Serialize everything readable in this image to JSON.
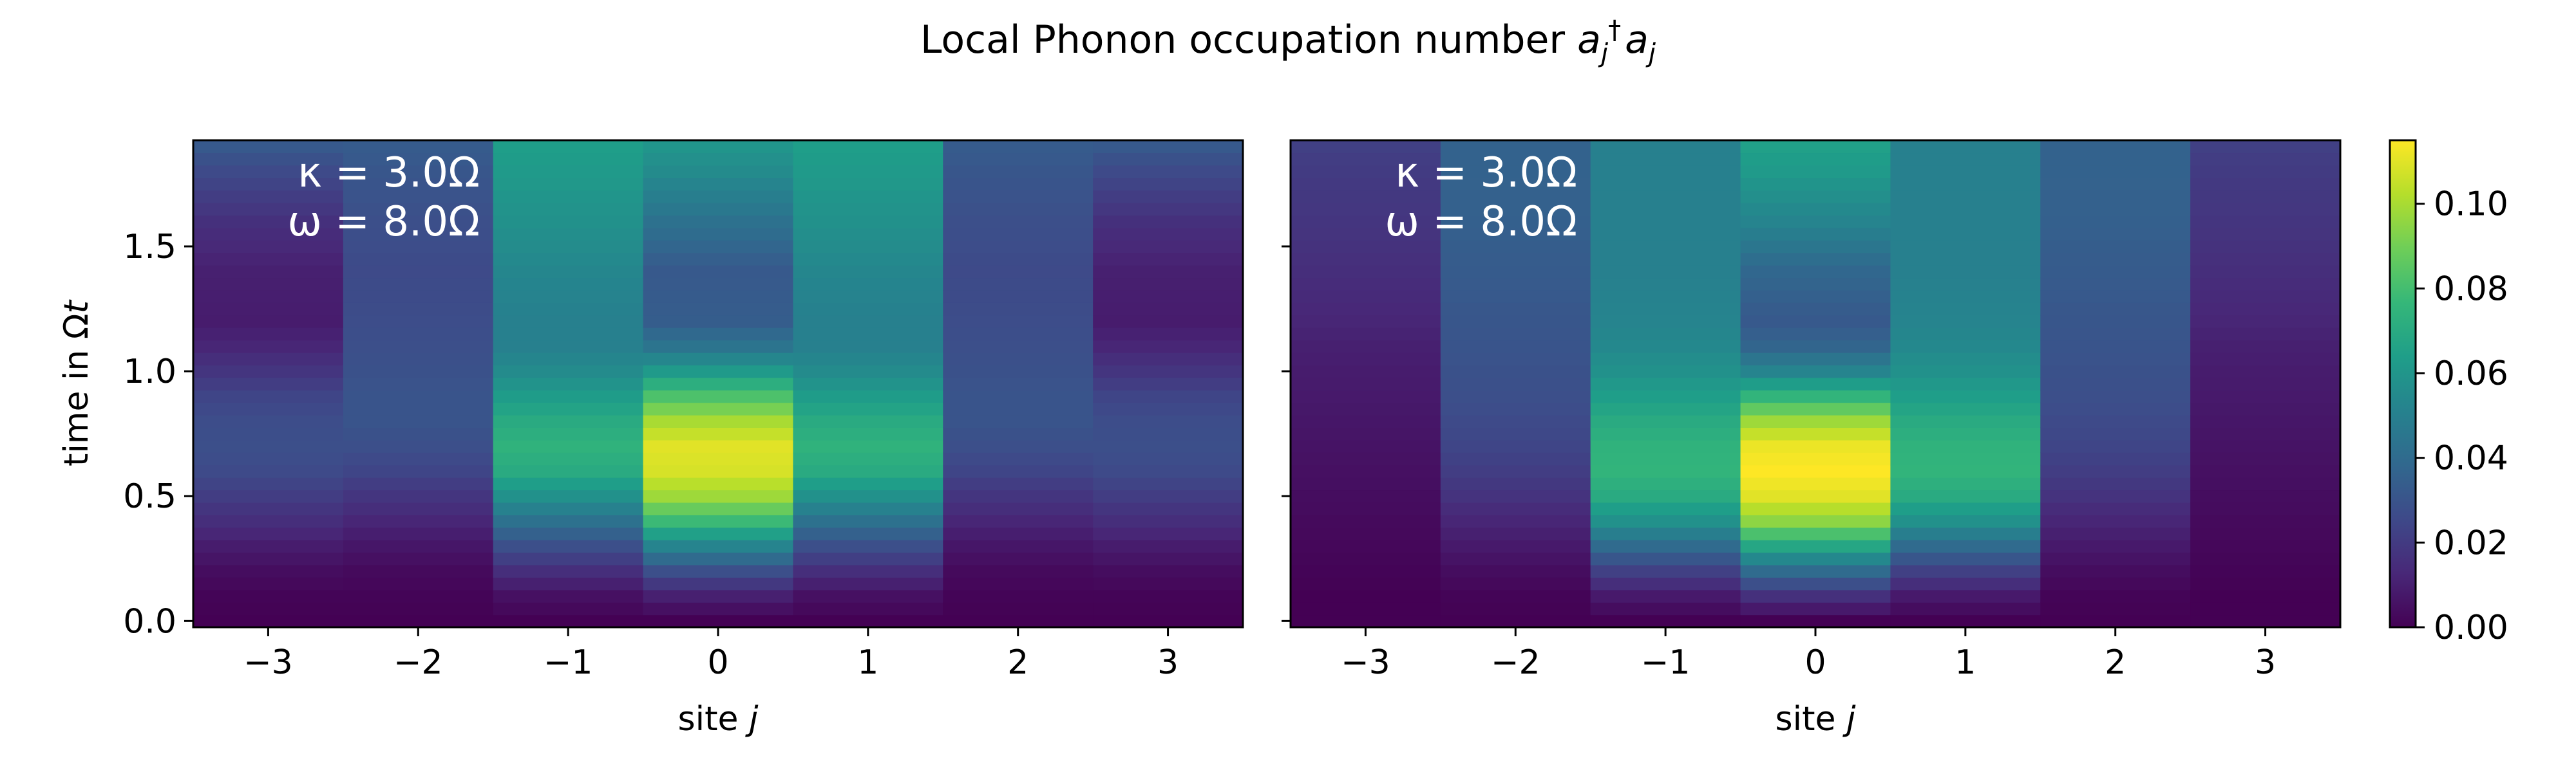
{
  "figure": {
    "title_text": "Local Phonon occupation number ",
    "title_math": {
      "base": "a",
      "sub": "j",
      "sup": "†",
      "base2": "a",
      "sub2": "j"
    }
  },
  "colormap": {
    "name": "viridis",
    "stops": [
      "#440154",
      "#482878",
      "#3e4989",
      "#31688e",
      "#26828e",
      "#1f9e89",
      "#35b779",
      "#6ece58",
      "#b5de2b",
      "#fde725"
    ]
  },
  "colorbar": {
    "vmin": 0.0,
    "vmax": 0.115,
    "ticks": [
      0.0,
      0.02,
      0.04,
      0.06,
      0.08,
      0.1
    ],
    "tick_labels": [
      "0.00",
      "0.02",
      "0.04",
      "0.06",
      "0.08",
      "0.10"
    ]
  },
  "chart_data": [
    {
      "type": "heatmap",
      "panel": "left",
      "xlabel_text": "site ",
      "xlabel_italic": "j",
      "ylabel_text": "time in Ω",
      "ylabel_italic": "t",
      "sites": [
        -3,
        -2,
        -1,
        0,
        1,
        2,
        3
      ],
      "xlim": [
        -3.5,
        3.5
      ],
      "ylim": [
        -0.025,
        1.925
      ],
      "xticks": [
        -3,
        -2,
        -1,
        0,
        1,
        2,
        3
      ],
      "xtick_labels": [
        "−3",
        "−2",
        "−1",
        "0",
        "1",
        "2",
        "3"
      ],
      "yticks": [
        0.0,
        0.5,
        1.0,
        1.5
      ],
      "ytick_labels": [
        "0.0",
        "0.5",
        "1.0",
        "1.5"
      ],
      "time_step": 0.05,
      "n_times": 39,
      "annotation": {
        "kappa": "κ = 3.0Ω",
        "omega": "ω = 8.0Ω"
      },
      "time_profiles": {
        "t": [
          0.0,
          0.1,
          0.2,
          0.3,
          0.4,
          0.5,
          0.6,
          0.7,
          0.8,
          0.9,
          1.0,
          1.1,
          1.2,
          1.4,
          1.6,
          1.8,
          1.9
        ],
        "by_site": [
          {
            "site": -3,
            "values": [
              0.0,
              0.001,
              0.004,
              0.009,
              0.015,
              0.021,
              0.026,
              0.028,
              0.027,
              0.024,
              0.018,
              0.012,
              0.009,
              0.01,
              0.016,
              0.026,
              0.032
            ]
          },
          {
            "site": -2,
            "values": [
              0.0,
              0.001,
              0.003,
              0.007,
              0.012,
              0.018,
              0.024,
              0.028,
              0.03,
              0.03,
              0.029,
              0.028,
              0.027,
              0.026,
              0.028,
              0.031,
              0.033
            ]
          },
          {
            "site": -1,
            "values": [
              0.0,
              0.005,
              0.015,
              0.028,
              0.043,
              0.058,
              0.07,
              0.074,
              0.07,
              0.063,
              0.055,
              0.05,
              0.05,
              0.053,
              0.058,
              0.062,
              0.064
            ]
          },
          {
            "site": 0,
            "values": [
              0.0,
              0.01,
              0.028,
              0.052,
              0.078,
              0.098,
              0.108,
              0.11,
              0.1,
              0.082,
              0.062,
              0.044,
              0.034,
              0.032,
              0.043,
              0.055,
              0.06
            ]
          },
          {
            "site": 1,
            "values": [
              0.0,
              0.005,
              0.015,
              0.028,
              0.043,
              0.058,
              0.07,
              0.074,
              0.07,
              0.063,
              0.055,
              0.05,
              0.05,
              0.053,
              0.058,
              0.062,
              0.064
            ]
          },
          {
            "site": 2,
            "values": [
              0.0,
              0.001,
              0.003,
              0.007,
              0.012,
              0.018,
              0.024,
              0.028,
              0.03,
              0.03,
              0.029,
              0.028,
              0.027,
              0.026,
              0.028,
              0.031,
              0.033
            ]
          },
          {
            "site": 3,
            "values": [
              0.0,
              0.001,
              0.004,
              0.009,
              0.015,
              0.021,
              0.026,
              0.028,
              0.027,
              0.024,
              0.018,
              0.012,
              0.009,
              0.01,
              0.016,
              0.026,
              0.032
            ]
          }
        ]
      }
    },
    {
      "type": "heatmap",
      "panel": "right",
      "xlabel_text": "site ",
      "xlabel_italic": "j",
      "sites": [
        -3,
        -2,
        -1,
        0,
        1,
        2,
        3
      ],
      "xlim": [
        -3.5,
        3.5
      ],
      "ylim": [
        -0.025,
        1.925
      ],
      "xticks": [
        -3,
        -2,
        -1,
        0,
        1,
        2,
        3
      ],
      "xtick_labels": [
        "−3",
        "−2",
        "−1",
        "0",
        "1",
        "2",
        "3"
      ],
      "yticks": [
        0.0,
        0.5,
        1.0,
        1.5
      ],
      "time_step": 0.05,
      "n_times": 39,
      "annotation": {
        "kappa": "κ = 3.0Ω",
        "omega": "ω = 8.0Ω"
      },
      "time_profiles": {
        "t": [
          0.0,
          0.1,
          0.2,
          0.3,
          0.4,
          0.5,
          0.6,
          0.7,
          0.8,
          0.9,
          1.0,
          1.1,
          1.2,
          1.4,
          1.6,
          1.8,
          1.9
        ],
        "by_site": [
          {
            "site": -3,
            "values": [
              0.0,
              0.0,
              0.001,
              0.002,
              0.003,
              0.004,
              0.005,
              0.006,
              0.007,
              0.008,
              0.009,
              0.01,
              0.012,
              0.015,
              0.018,
              0.02,
              0.022
            ]
          },
          {
            "site": -2,
            "values": [
              0.0,
              0.001,
              0.004,
              0.008,
              0.012,
              0.017,
              0.021,
              0.024,
              0.026,
              0.028,
              0.029,
              0.03,
              0.031,
              0.033,
              0.035,
              0.036,
              0.036
            ]
          },
          {
            "site": -1,
            "values": [
              0.0,
              0.008,
              0.022,
              0.04,
              0.058,
              0.07,
              0.075,
              0.074,
              0.07,
              0.064,
              0.058,
              0.054,
              0.052,
              0.05,
              0.05,
              0.05,
              0.05
            ]
          },
          {
            "site": 0,
            "values": [
              0.0,
              0.016,
              0.04,
              0.068,
              0.095,
              0.11,
              0.115,
              0.112,
              0.098,
              0.075,
              0.052,
              0.037,
              0.032,
              0.038,
              0.052,
              0.062,
              0.065
            ]
          },
          {
            "site": 1,
            "values": [
              0.0,
              0.008,
              0.022,
              0.04,
              0.058,
              0.07,
              0.075,
              0.074,
              0.07,
              0.064,
              0.058,
              0.054,
              0.052,
              0.05,
              0.05,
              0.05,
              0.05
            ]
          },
          {
            "site": 2,
            "values": [
              0.0,
              0.001,
              0.004,
              0.008,
              0.012,
              0.017,
              0.021,
              0.024,
              0.026,
              0.028,
              0.029,
              0.03,
              0.031,
              0.033,
              0.035,
              0.036,
              0.036
            ]
          },
          {
            "site": 3,
            "values": [
              0.0,
              0.0,
              0.001,
              0.002,
              0.003,
              0.004,
              0.005,
              0.006,
              0.007,
              0.008,
              0.009,
              0.01,
              0.012,
              0.015,
              0.018,
              0.02,
              0.022
            ]
          }
        ]
      }
    }
  ]
}
